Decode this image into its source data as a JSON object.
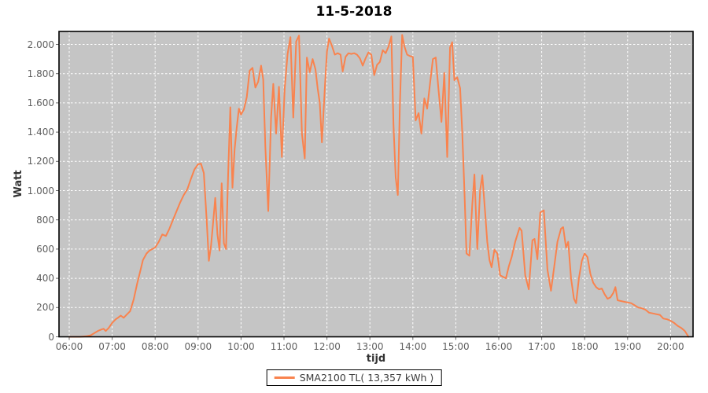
{
  "colors": {
    "series": "#F9834E",
    "plot_bg": "#C5C5C5",
    "grid": "#FFFFFF",
    "plot_border": "#000000",
    "tick_text": "#5F5F5F",
    "axis_text": "#333333"
  },
  "legend": {
    "label": "SMA2100 TL( 13,357 kWh )"
  },
  "chart_data": {
    "type": "line",
    "title": "11-5-2018",
    "xlabel": "tijd",
    "ylabel": "Watt",
    "ylim": [
      0,
      2086
    ],
    "grid": true,
    "legend_position": "bottom",
    "x_ticks": [
      "06:00",
      "07:00",
      "08:00",
      "09:00",
      "10:00",
      "11:00",
      "12:00",
      "13:00",
      "14:00",
      "15:00",
      "16:00",
      "17:00",
      "18:00",
      "19:00",
      "20:00"
    ],
    "y_ticks": [
      {
        "value": 0,
        "label": "0"
      },
      {
        "value": 200,
        "label": "200"
      },
      {
        "value": 400,
        "label": "400"
      },
      {
        "value": 600,
        "label": "600"
      },
      {
        "value": 800,
        "label": "800"
      },
      {
        "value": 1000,
        "label": "1.000"
      },
      {
        "value": 1200,
        "label": "1.200"
      },
      {
        "value": 1400,
        "label": "1.400"
      },
      {
        "value": 1600,
        "label": "1.600"
      },
      {
        "value": 1800,
        "label": "1.800"
      },
      {
        "value": 2000,
        "label": "2.000"
      }
    ],
    "series": [
      {
        "name": "SMA2100 TL( 13,357 kWh )",
        "color": "#F9834E",
        "x": [
          "06:00",
          "06:05",
          "06:10",
          "06:15",
          "06:20",
          "06:25",
          "06:30",
          "06:35",
          "06:40",
          "06:45",
          "06:48",
          "06:51",
          "06:55",
          "07:00",
          "07:05",
          "07:08",
          "07:12",
          "07:16",
          "07:20",
          "07:25",
          "07:30",
          "07:35",
          "07:39",
          "07:43",
          "07:48",
          "07:52",
          "07:56",
          "08:00",
          "08:05",
          "08:10",
          "08:15",
          "08:20",
          "08:25",
          "08:30",
          "08:35",
          "08:40",
          "08:45",
          "08:50",
          "08:55",
          "09:00",
          "09:04",
          "09:08",
          "09:12",
          "09:15",
          "09:18",
          "09:21",
          "09:24",
          "09:27",
          "09:30",
          "09:33",
          "09:36",
          "09:39",
          "09:42",
          "09:45",
          "09:48",
          "09:51",
          "09:54",
          "09:57",
          "10:00",
          "10:04",
          "10:08",
          "10:12",
          "10:16",
          "10:20",
          "10:24",
          "10:28",
          "10:31",
          "10:34",
          "10:38",
          "10:42",
          "10:45",
          "10:49",
          "10:53",
          "10:57",
          "11:01",
          "11:05",
          "11:09",
          "11:13",
          "11:17",
          "11:21",
          "11:25",
          "11:29",
          "11:32",
          "11:36",
          "11:40",
          "11:44",
          "11:47",
          "11:50",
          "11:53",
          "11:57",
          "12:00",
          "12:03",
          "12:07",
          "12:11",
          "12:15",
          "12:19",
          "12:22",
          "12:26",
          "12:30",
          "12:34",
          "12:38",
          "12:42",
          "12:46",
          "12:50",
          "12:54",
          "12:58",
          "13:02",
          "13:06",
          "13:10",
          "13:14",
          "13:18",
          "13:22",
          "13:26",
          "13:30",
          "13:33",
          "13:36",
          "13:39",
          "13:42",
          "13:45",
          "13:48",
          "13:52",
          "13:56",
          "14:00",
          "14:04",
          "14:08",
          "14:12",
          "14:16",
          "14:20",
          "14:24",
          "14:28",
          "14:32",
          "14:36",
          "14:40",
          "14:44",
          "14:48",
          "14:52",
          "14:55",
          "14:58",
          "15:02",
          "15:06",
          "15:09",
          "15:12",
          "15:15",
          "15:19",
          "15:23",
          "15:26",
          "15:30",
          "15:34",
          "15:37",
          "15:41",
          "15:44",
          "15:47",
          "15:50",
          "15:54",
          "15:58",
          "16:02",
          "16:06",
          "16:10",
          "16:14",
          "16:18",
          "16:23",
          "16:29",
          "16:32",
          "16:37",
          "16:42",
          "16:47",
          "16:50",
          "16:54",
          "16:58",
          "17:03",
          "17:08",
          "17:13",
          "17:18",
          "17:22",
          "17:27",
          "17:30",
          "17:34",
          "17:37",
          "17:41",
          "17:45",
          "17:48",
          "17:52",
          "17:56",
          "18:00",
          "18:04",
          "18:08",
          "18:12",
          "18:16",
          "18:20",
          "18:24",
          "18:28",
          "18:32",
          "18:36",
          "18:40",
          "18:43",
          "18:46",
          "18:50",
          "18:55",
          "19:00",
          "19:05",
          "19:10",
          "19:15",
          "19:20",
          "19:25",
          "19:30",
          "19:35",
          "19:40",
          "19:45",
          "19:50",
          "19:55",
          "20:00",
          "20:05",
          "20:10",
          "20:15",
          "20:20",
          "20:25"
        ],
        "values": [
          0,
          0,
          0,
          0,
          2,
          5,
          10,
          25,
          40,
          50,
          55,
          40,
          60,
          95,
          120,
          130,
          145,
          130,
          150,
          175,
          255,
          365,
          445,
          525,
          570,
          590,
          600,
          610,
          650,
          700,
          690,
          740,
          800,
          860,
          920,
          970,
          1010,
          1080,
          1145,
          1180,
          1185,
          1120,
          800,
          520,
          620,
          780,
          950,
          700,
          590,
          1050,
          640,
          600,
          1110,
          1570,
          1020,
          1280,
          1430,
          1560,
          1520,
          1555,
          1640,
          1820,
          1840,
          1705,
          1745,
          1855,
          1760,
          1300,
          860,
          1500,
          1730,
          1390,
          1710,
          1230,
          1700,
          1935,
          2050,
          1500,
          2020,
          2060,
          1390,
          1220,
          1910,
          1810,
          1900,
          1830,
          1700,
          1600,
          1330,
          1700,
          1950,
          2040,
          1990,
          1930,
          1940,
          1930,
          1815,
          1915,
          1940,
          1935,
          1940,
          1930,
          1905,
          1855,
          1905,
          1945,
          1930,
          1790,
          1860,
          1880,
          1960,
          1940,
          1985,
          2055,
          1450,
          1090,
          970,
          1600,
          2065,
          1990,
          1930,
          1920,
          1915,
          1480,
          1530,
          1390,
          1630,
          1560,
          1730,
          1900,
          1910,
          1680,
          1470,
          1805,
          1230,
          1980,
          2015,
          1755,
          1775,
          1700,
          1400,
          1010,
          570,
          555,
          900,
          1110,
          600,
          1000,
          1105,
          850,
          650,
          525,
          475,
          595,
          570,
          420,
          410,
          400,
          480,
          545,
          650,
          745,
          725,
          420,
          325,
          660,
          670,
          530,
          850,
          865,
          460,
          315,
          500,
          650,
          740,
          750,
          610,
          650,
          400,
          260,
          230,
          400,
          520,
          570,
          545,
          430,
          370,
          340,
          325,
          330,
          290,
          260,
          270,
          300,
          340,
          250,
          245,
          240,
          235,
          230,
          215,
          200,
          195,
          185,
          165,
          160,
          155,
          150,
          125,
          120,
          110,
          95,
          75,
          60,
          40,
          0
        ]
      }
    ]
  }
}
